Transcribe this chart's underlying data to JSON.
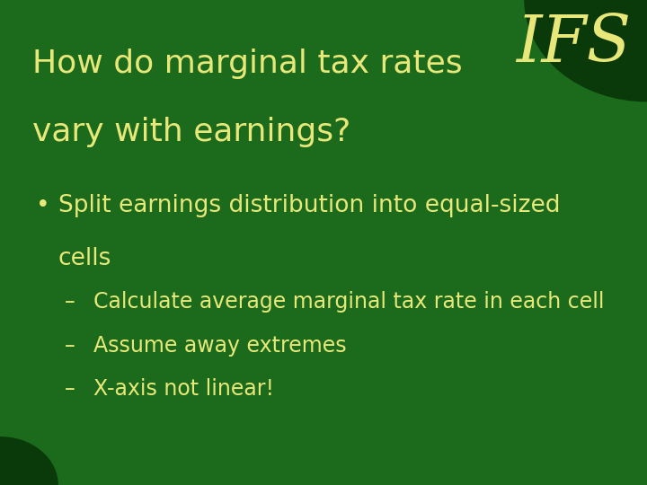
{
  "background_color": "#1c6b1c",
  "corner_dark_color": "#0a3a0a",
  "title_text_line1": "How do marginal tax rates",
  "title_text_line2": "vary with earnings?",
  "title_color": "#e8e87a",
  "ifs_text": "IFS",
  "ifs_color": "#e8e87a",
  "bullet_main": "Split earnings distribution into equal-sized",
  "bullet_main2": "cells",
  "bullet_color": "#e8e87a",
  "sub_bullets": [
    "Calculate average marginal tax rate in each cell",
    "Assume away extremes",
    "X-axis not linear!"
  ],
  "sub_bullet_color": "#e8e87a",
  "title_fontsize": 26,
  "ifs_fontsize": 52,
  "bullet_fontsize": 19,
  "sub_bullet_fontsize": 17
}
